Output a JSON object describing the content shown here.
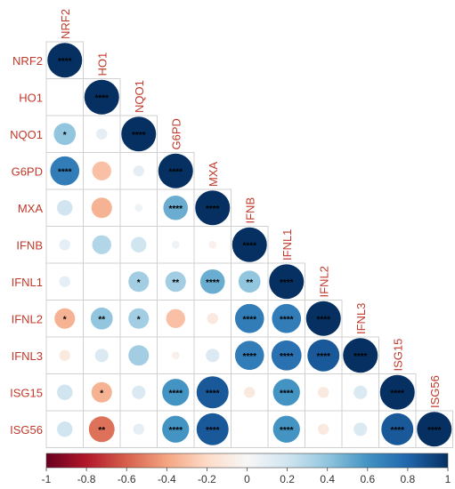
{
  "chart_data": {
    "type": "heatmap",
    "variables": [
      "NRF2",
      "HO1",
      "NQO1",
      "G6PD",
      "MXA",
      "IFNB",
      "IFNL1",
      "IFNL2",
      "IFNL3",
      "ISG15",
      "ISG56"
    ],
    "cells": [
      {
        "row": "NRF2",
        "col": "NRF2",
        "value": 1.0,
        "sig": "****"
      },
      {
        "row": "HO1",
        "col": "NRF2",
        "value": 0.0,
        "sig": ""
      },
      {
        "row": "HO1",
        "col": "HO1",
        "value": 1.0,
        "sig": "****"
      },
      {
        "row": "NQO1",
        "col": "NRF2",
        "value": 0.4,
        "sig": "*"
      },
      {
        "row": "NQO1",
        "col": "HO1",
        "value": 0.1,
        "sig": ""
      },
      {
        "row": "NQO1",
        "col": "NQO1",
        "value": 1.0,
        "sig": "****"
      },
      {
        "row": "G6PD",
        "col": "NRF2",
        "value": 0.7,
        "sig": "****"
      },
      {
        "row": "G6PD",
        "col": "HO1",
        "value": -0.3,
        "sig": ""
      },
      {
        "row": "G6PD",
        "col": "NQO1",
        "value": 0.1,
        "sig": ""
      },
      {
        "row": "G6PD",
        "col": "G6PD",
        "value": 1.0,
        "sig": "****"
      },
      {
        "row": "MXA",
        "col": "NRF2",
        "value": 0.2,
        "sig": ""
      },
      {
        "row": "MXA",
        "col": "HO1",
        "value": -0.35,
        "sig": ""
      },
      {
        "row": "MXA",
        "col": "NQO1",
        "value": 0.05,
        "sig": ""
      },
      {
        "row": "MXA",
        "col": "G6PD",
        "value": 0.5,
        "sig": "****"
      },
      {
        "row": "MXA",
        "col": "MXA",
        "value": 1.0,
        "sig": "****"
      },
      {
        "row": "IFNB",
        "col": "NRF2",
        "value": 0.1,
        "sig": ""
      },
      {
        "row": "IFNB",
        "col": "HO1",
        "value": 0.3,
        "sig": ""
      },
      {
        "row": "IFNB",
        "col": "NQO1",
        "value": 0.2,
        "sig": ""
      },
      {
        "row": "IFNB",
        "col": "G6PD",
        "value": 0.05,
        "sig": ""
      },
      {
        "row": "IFNB",
        "col": "MXA",
        "value": -0.05,
        "sig": ""
      },
      {
        "row": "IFNB",
        "col": "IFNB",
        "value": 1.0,
        "sig": "****"
      },
      {
        "row": "IFNL1",
        "col": "NRF2",
        "value": 0.1,
        "sig": ""
      },
      {
        "row": "IFNL1",
        "col": "HO1",
        "value": 0.0,
        "sig": ""
      },
      {
        "row": "IFNL1",
        "col": "NQO1",
        "value": 0.35,
        "sig": "*"
      },
      {
        "row": "IFNL1",
        "col": "G6PD",
        "value": 0.35,
        "sig": "**"
      },
      {
        "row": "IFNL1",
        "col": "MXA",
        "value": 0.5,
        "sig": "****"
      },
      {
        "row": "IFNL1",
        "col": "IFNB",
        "value": 0.4,
        "sig": "**"
      },
      {
        "row": "IFNL1",
        "col": "IFNL1",
        "value": 1.0,
        "sig": "****"
      },
      {
        "row": "IFNL2",
        "col": "NRF2",
        "value": -0.35,
        "sig": "*"
      },
      {
        "row": "IFNL2",
        "col": "HO1",
        "value": 0.4,
        "sig": "**"
      },
      {
        "row": "IFNL2",
        "col": "NQO1",
        "value": 0.35,
        "sig": "*"
      },
      {
        "row": "IFNL2",
        "col": "G6PD",
        "value": -0.3,
        "sig": ""
      },
      {
        "row": "IFNL2",
        "col": "MXA",
        "value": -0.1,
        "sig": ""
      },
      {
        "row": "IFNL2",
        "col": "IFNB",
        "value": 0.7,
        "sig": "****"
      },
      {
        "row": "IFNL2",
        "col": "IFNL1",
        "value": 0.7,
        "sig": "****"
      },
      {
        "row": "IFNL2",
        "col": "IFNL2",
        "value": 1.0,
        "sig": "****"
      },
      {
        "row": "IFNL3",
        "col": "NRF2",
        "value": -0.1,
        "sig": ""
      },
      {
        "row": "IFNL3",
        "col": "HO1",
        "value": 0.15,
        "sig": ""
      },
      {
        "row": "IFNL3",
        "col": "NQO1",
        "value": 0.35,
        "sig": ""
      },
      {
        "row": "IFNL3",
        "col": "G6PD",
        "value": -0.05,
        "sig": ""
      },
      {
        "row": "IFNL3",
        "col": "MXA",
        "value": 0.15,
        "sig": ""
      },
      {
        "row": "IFNL3",
        "col": "IFNB",
        "value": 0.7,
        "sig": "****"
      },
      {
        "row": "IFNL3",
        "col": "IFNL1",
        "value": 0.75,
        "sig": "****"
      },
      {
        "row": "IFNL3",
        "col": "IFNL2",
        "value": 0.85,
        "sig": "****"
      },
      {
        "row": "IFNL3",
        "col": "IFNL3",
        "value": 1.0,
        "sig": "****"
      },
      {
        "row": "ISG15",
        "col": "NRF2",
        "value": 0.2,
        "sig": ""
      },
      {
        "row": "ISG15",
        "col": "HO1",
        "value": -0.35,
        "sig": "*"
      },
      {
        "row": "ISG15",
        "col": "NQO1",
        "value": 0.15,
        "sig": ""
      },
      {
        "row": "ISG15",
        "col": "G6PD",
        "value": 0.6,
        "sig": "****"
      },
      {
        "row": "ISG15",
        "col": "MXA",
        "value": 0.85,
        "sig": "****"
      },
      {
        "row": "ISG15",
        "col": "IFNB",
        "value": -0.1,
        "sig": ""
      },
      {
        "row": "ISG15",
        "col": "IFNL1",
        "value": 0.6,
        "sig": "****"
      },
      {
        "row": "ISG15",
        "col": "IFNL2",
        "value": -0.1,
        "sig": ""
      },
      {
        "row": "ISG15",
        "col": "IFNL3",
        "value": 0.15,
        "sig": ""
      },
      {
        "row": "ISG15",
        "col": "ISG15",
        "value": 1.0,
        "sig": "****"
      },
      {
        "row": "ISG56",
        "col": "NRF2",
        "value": 0.2,
        "sig": ""
      },
      {
        "row": "ISG56",
        "col": "HO1",
        "value": -0.55,
        "sig": "**"
      },
      {
        "row": "ISG56",
        "col": "NQO1",
        "value": 0.1,
        "sig": ""
      },
      {
        "row": "ISG56",
        "col": "G6PD",
        "value": 0.6,
        "sig": "****"
      },
      {
        "row": "ISG56",
        "col": "MXA",
        "value": 0.85,
        "sig": "****"
      },
      {
        "row": "ISG56",
        "col": "IFNB",
        "value": 0.0,
        "sig": ""
      },
      {
        "row": "ISG56",
        "col": "IFNL1",
        "value": 0.6,
        "sig": "****"
      },
      {
        "row": "ISG56",
        "col": "IFNL2",
        "value": -0.1,
        "sig": ""
      },
      {
        "row": "ISG56",
        "col": "IFNL3",
        "value": 0.15,
        "sig": ""
      },
      {
        "row": "ISG56",
        "col": "ISG15",
        "value": 0.85,
        "sig": "****"
      },
      {
        "row": "ISG56",
        "col": "ISG56",
        "value": 1.0,
        "sig": "****"
      }
    ],
    "colorbar": {
      "range": [
        -1,
        1
      ],
      "ticks": [
        "-1",
        "-0.8",
        "-0.6",
        "-0.4",
        "-0.2",
        "0",
        "0.2",
        "0.4",
        "0.6",
        "0.8",
        "1"
      ],
      "placement": "bottom"
    },
    "colors": {
      "negative": "#67001f",
      "neutral": "#f7f7f7",
      "positive": "#053061",
      "label": "#c0392b",
      "stars": "#000000",
      "grid": "#d0d0d0"
    },
    "title": "",
    "xlabel": "",
    "ylabel": ""
  }
}
